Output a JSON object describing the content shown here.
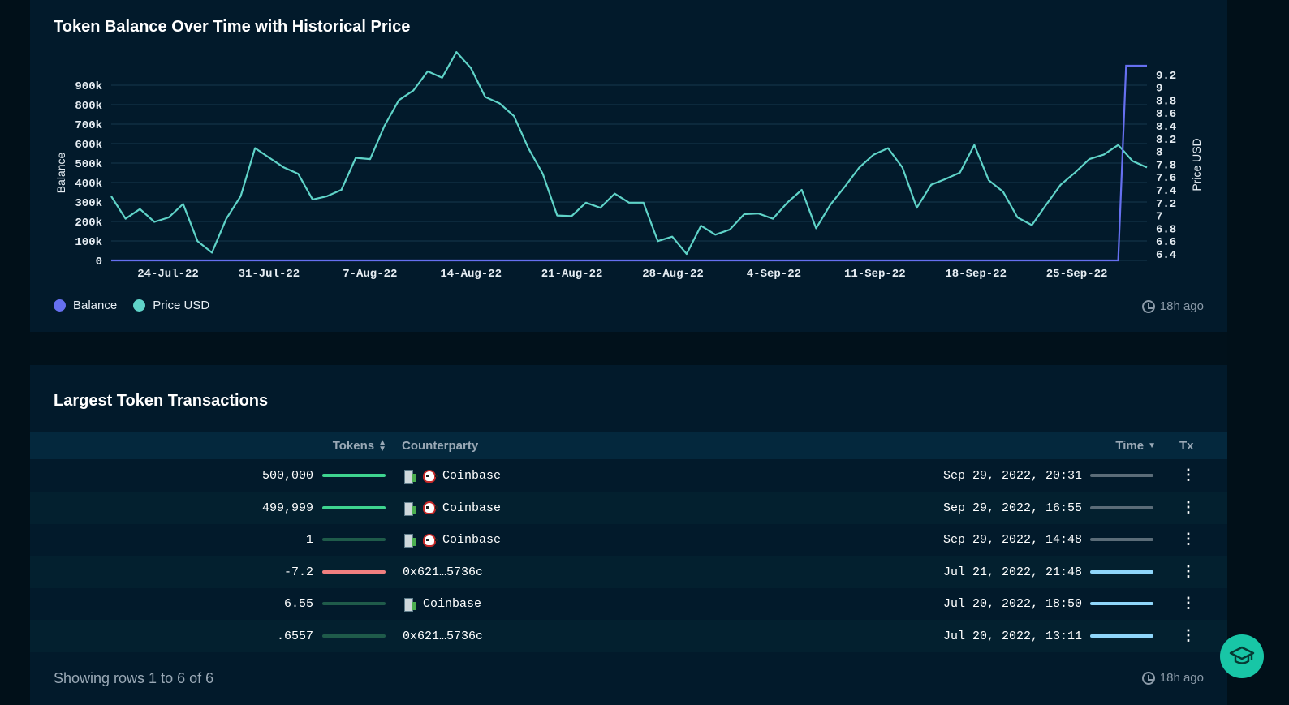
{
  "chart_panel": {
    "title": "Token Balance Over Time with Historical Price",
    "legend": [
      {
        "label": "Balance",
        "color": "#6670f0"
      },
      {
        "label": "Price USD",
        "color": "#5fd3c8"
      }
    ],
    "updated": "18h ago"
  },
  "chart_data": {
    "type": "line",
    "x_tick_labels": [
      "24-Jul-22",
      "31-Jul-22",
      "7-Aug-22",
      "14-Aug-22",
      "21-Aug-22",
      "28-Aug-22",
      "4-Sep-22",
      "11-Sep-22",
      "18-Sep-22",
      "25-Sep-22"
    ],
    "ylabel_left": "Balance",
    "ylabel_right": "Price USD",
    "left_ticks": [
      "0",
      "100k",
      "200k",
      "300k",
      "400k",
      "500k",
      "600k",
      "700k",
      "800k",
      "900k"
    ],
    "right_ticks": [
      "6.4",
      "6.6",
      "6.8",
      "7",
      "7.2",
      "7.4",
      "7.6",
      "7.8",
      "8",
      "8.2",
      "8.4",
      "8.6",
      "8.8",
      "9",
      "9.2"
    ],
    "left_ylim": [
      0,
      1000000
    ],
    "right_ylim": [
      6.4,
      9.4
    ],
    "grid": true,
    "legend_position": "bottom-left",
    "series": [
      {
        "name": "Price USD",
        "axis": "right",
        "color": "#5fd3c8",
        "values": [
          7.3,
          6.95,
          7.1,
          6.9,
          6.97,
          7.18,
          6.6,
          6.42,
          6.95,
          7.3,
          8.05,
          7.9,
          7.75,
          7.65,
          7.25,
          7.3,
          7.4,
          7.9,
          7.88,
          8.4,
          8.8,
          8.95,
          9.25,
          9.15,
          9.55,
          9.3,
          8.85,
          8.75,
          8.55,
          8.05,
          7.65,
          7.0,
          6.99,
          7.2,
          7.12,
          7.34,
          7.2,
          7.2,
          6.6,
          6.67,
          6.4,
          6.84,
          6.7,
          6.78,
          7.02,
          7.03,
          6.95,
          7.2,
          7.4,
          6.8,
          7.17,
          7.45,
          7.75,
          7.95,
          8.05,
          7.75,
          7.12,
          7.48,
          7.57,
          7.67,
          8.1,
          7.55,
          7.37,
          6.97,
          6.85,
          7.17,
          7.48,
          7.67,
          7.88,
          7.95,
          8.1,
          7.85,
          7.75
        ]
      },
      {
        "name": "Balance",
        "axis": "left",
        "color": "#6670f0",
        "values": [
          0,
          0,
          0,
          0,
          0,
          0,
          0,
          0,
          0,
          0,
          0,
          0,
          0,
          0,
          0,
          0,
          0,
          0,
          0,
          0,
          0,
          0,
          0,
          0,
          0,
          0,
          0,
          0,
          0,
          0,
          0,
          0,
          0,
          0,
          0,
          0,
          0,
          0,
          0,
          0,
          0,
          0,
          0,
          0,
          0,
          0,
          0,
          0,
          0,
          0,
          0,
          0,
          0,
          0,
          0,
          0,
          0,
          0,
          0,
          0,
          0,
          0,
          0,
          0,
          0,
          0,
          0,
          0,
          0,
          0,
          0,
          999999,
          999999
        ]
      }
    ]
  },
  "table_panel": {
    "title": "Largest Token Transactions",
    "columns": {
      "tokens": "Tokens",
      "counterparty": "Counterparty",
      "time": "Time",
      "tx": "Tx"
    },
    "rows": [
      {
        "tokens": "500,000",
        "counterparty": "Coinbase",
        "icons": [
          "building-icon",
          "skull-icon"
        ],
        "time": "Sep 29, 2022, 20:31",
        "bar_color": "#3ed48f",
        "bar_fraction": 1.0,
        "time_bar_color": "#5b6c78",
        "time_fraction": 1.0
      },
      {
        "tokens": "499,999",
        "counterparty": "Coinbase",
        "icons": [
          "building-icon",
          "skull-icon"
        ],
        "time": "Sep 29, 2022, 16:55",
        "bar_color": "#3ed48f",
        "bar_fraction": 1.0,
        "time_bar_color": "#5b6c78",
        "time_fraction": 1.0
      },
      {
        "tokens": "1",
        "counterparty": "Coinbase",
        "icons": [
          "building-icon",
          "skull-icon"
        ],
        "time": "Sep 29, 2022, 14:48",
        "bar_color": "#1f5b4a",
        "bar_fraction": 1.0,
        "time_bar_color": "#5b6c78",
        "time_fraction": 1.0
      },
      {
        "tokens": "-7.2",
        "counterparty": "0x621…5736c",
        "icons": [],
        "time": "Jul 21, 2022, 21:48",
        "bar_color": "#f07f7f",
        "bar_fraction": 1.0,
        "time_bar_color": "#8fd6fa",
        "time_fraction": 1.0
      },
      {
        "tokens": "6.55",
        "counterparty": "Coinbase",
        "icons": [
          "building-icon"
        ],
        "time": "Jul 20, 2022, 18:50",
        "bar_color": "#1f5b4a",
        "bar_fraction": 1.0,
        "time_bar_color": "#8fd6fa",
        "time_fraction": 1.0
      },
      {
        "tokens": ".6557",
        "counterparty": "0x621…5736c",
        "icons": [],
        "time": "Jul 20, 2022, 13:11",
        "bar_color": "#1f5b4a",
        "bar_fraction": 1.0,
        "time_bar_color": "#8fd6fa",
        "time_fraction": 1.0
      }
    ],
    "footer": "Showing rows 1 to 6 of 6",
    "updated": "18h ago"
  },
  "help_button": {
    "icon": "graduation-cap-icon",
    "color": "#18c6a6"
  }
}
